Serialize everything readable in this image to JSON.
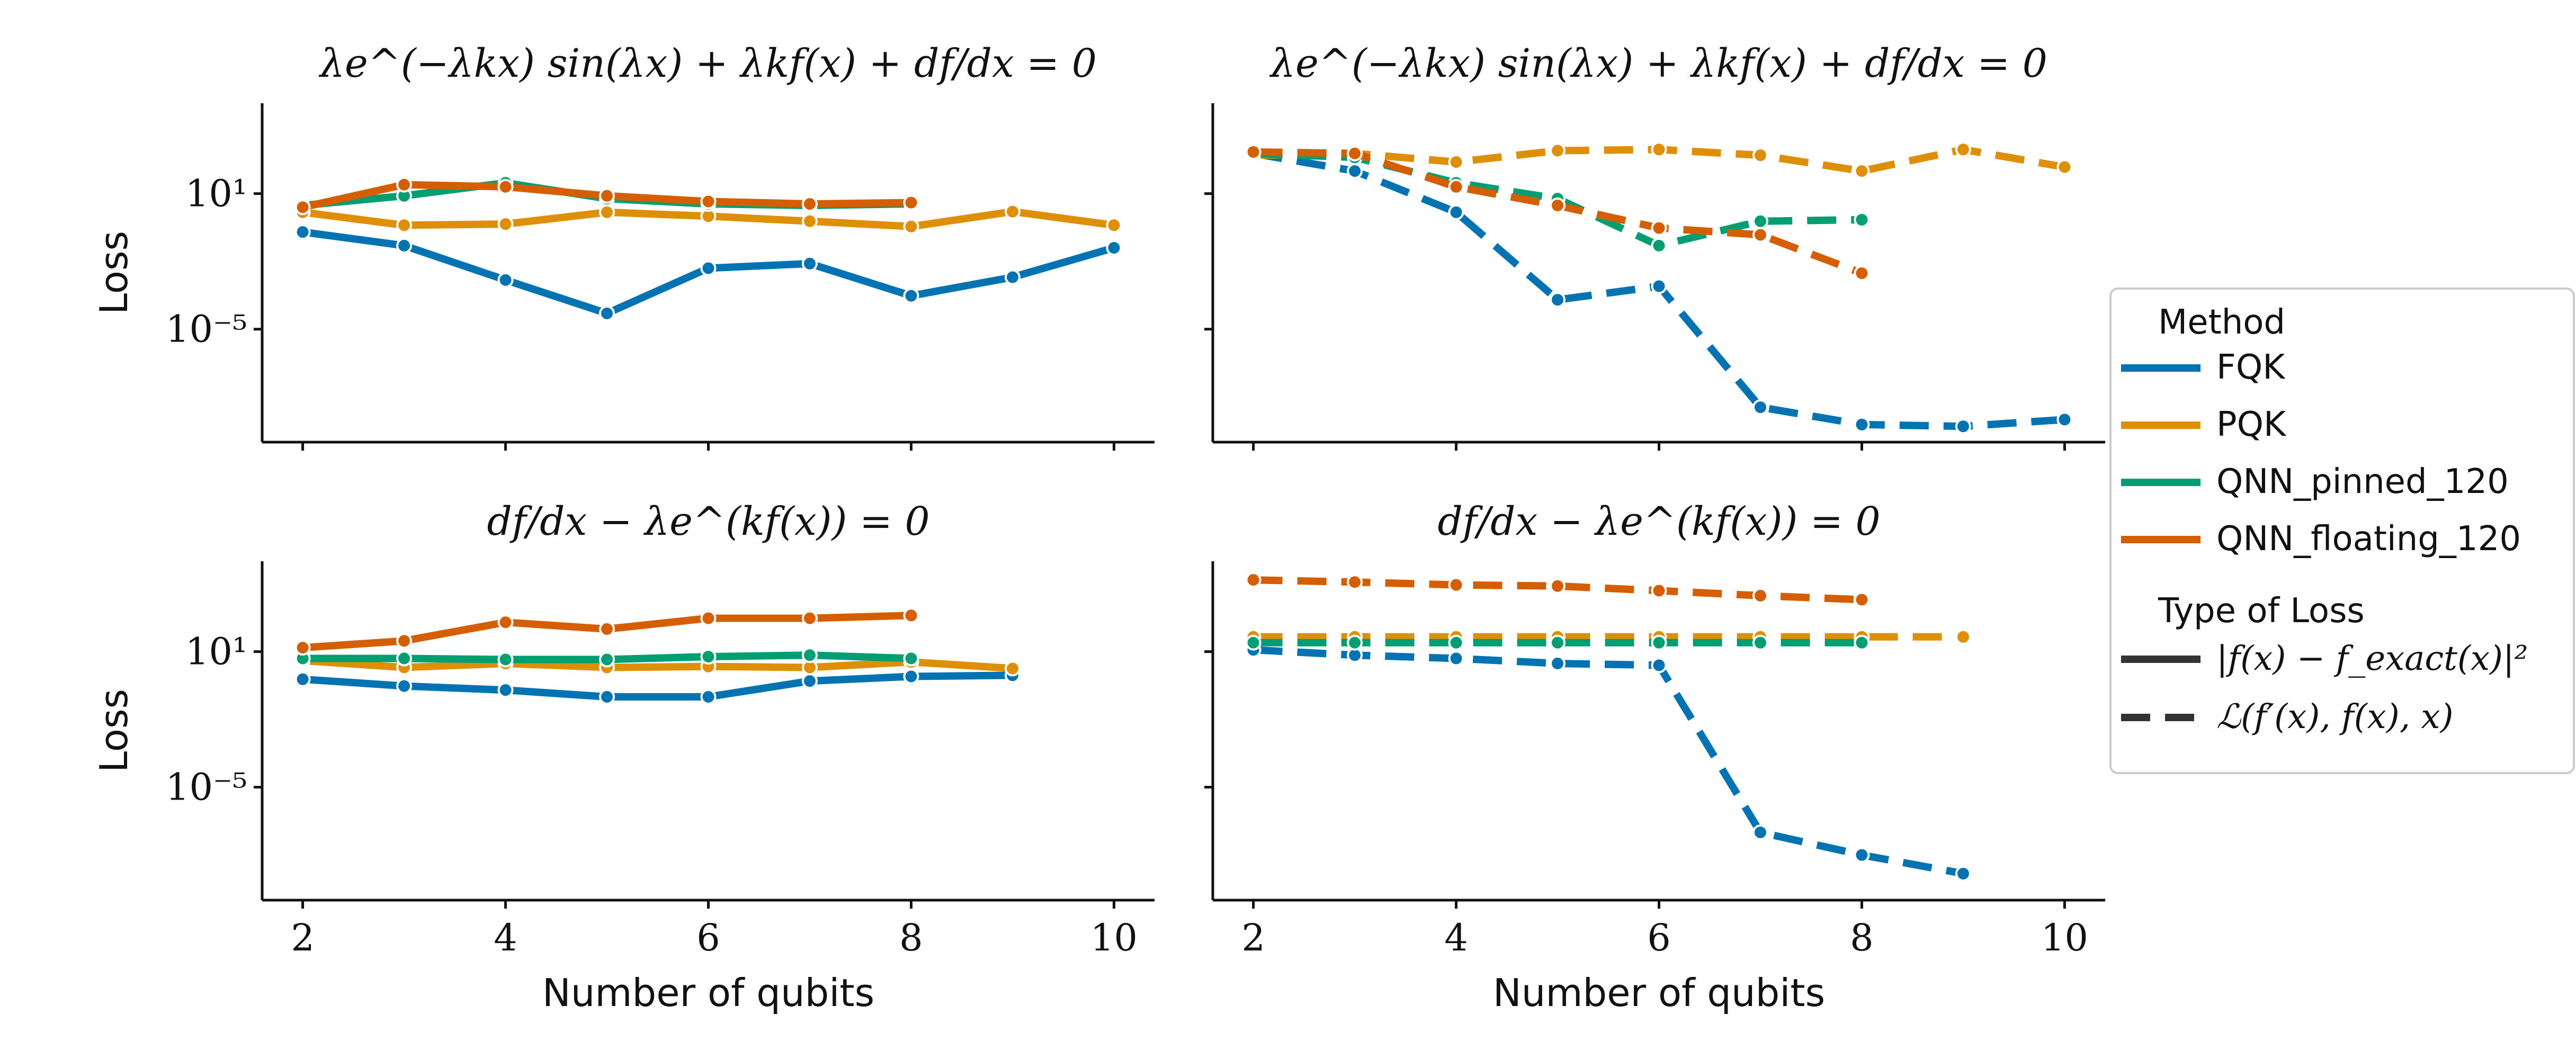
{
  "colors": {
    "FQK": "#0173b2",
    "PQK": "#de8f05",
    "QNN_pinned_120": "#029e73",
    "QNN_floating_120": "#d55e00",
    "axis": "#111111"
  },
  "legend": {
    "method_title": "Method",
    "methods": [
      "FQK",
      "PQK",
      "QNN_pinned_120",
      "QNN_floating_120"
    ],
    "type_title": "Type of Loss",
    "types": [
      {
        "label": "|f(x) − f_exact(x)|²",
        "style": "solid"
      },
      {
        "label": "ℒ(f′(x), f(x), x)",
        "style": "dashed"
      }
    ]
  },
  "chart_data": [
    {
      "type": "line",
      "title": "λe^(−λkx) sin(λx) + λkf(x) + df/dx = 0",
      "xlabel": "",
      "ylabel": "Loss",
      "yscale": "log",
      "xlim": [
        1.6,
        10.4
      ],
      "ylim": [
        1e-10,
        100000.0
      ],
      "yticks": [
        {
          "value": 10,
          "label": "10¹"
        },
        {
          "value": 1e-05,
          "label": "10⁻⁵"
        }
      ],
      "xticks": [],
      "style": "solid",
      "series": [
        {
          "name": "FQK",
          "x": [
            2,
            3,
            4,
            5,
            6,
            7,
            8,
            9,
            10
          ],
          "y": [
            0.2,
            0.05,
            0.0015,
            5e-05,
            0.005,
            0.008,
            0.0003,
            0.002,
            0.04
          ]
        },
        {
          "name": "PQK",
          "x": [
            2,
            3,
            4,
            5,
            6,
            7,
            8,
            9,
            10
          ],
          "y": [
            1.5,
            0.4,
            0.45,
            1.5,
            1.0,
            0.6,
            0.35,
            1.6,
            0.4
          ]
        },
        {
          "name": "QNN_pinned_120",
          "x": [
            2,
            3,
            4,
            5,
            6,
            7,
            8
          ],
          "y": [
            3,
            8,
            30,
            6,
            3.5,
            3,
            3.5
          ]
        },
        {
          "name": "QNN_floating_120",
          "x": [
            2,
            3,
            4,
            5,
            6,
            7,
            8
          ],
          "y": [
            2.5,
            25,
            20,
            8,
            4.5,
            3.5,
            4
          ]
        }
      ]
    },
    {
      "type": "line",
      "title": "λe^(−λkx) sin(λx) + λkf(x) + df/dx = 0",
      "xlabel": "",
      "ylabel": "",
      "yscale": "log",
      "xlim": [
        1.6,
        10.4
      ],
      "ylim": [
        1e-10,
        100000.0
      ],
      "yticks": [
        {
          "value": 10,
          "label": ""
        },
        {
          "value": 1e-05,
          "label": ""
        }
      ],
      "xticks": [],
      "style": "dashed",
      "series": [
        {
          "name": "FQK",
          "x": [
            2,
            3,
            4,
            5,
            6,
            7,
            8,
            9,
            10
          ],
          "y": [
            600,
            100,
            1.5,
            0.0002,
            0.0008,
            3.5e-09,
            6e-10,
            5e-10,
            1e-09
          ]
        },
        {
          "name": "PQK",
          "x": [
            2,
            3,
            4,
            5,
            6,
            7,
            8,
            9,
            10
          ],
          "y": [
            500,
            600,
            250,
            800,
            900,
            500,
            100,
            900,
            150
          ]
        },
        {
          "name": "QNN_pinned_120",
          "x": [
            2,
            3,
            4,
            5,
            6,
            7,
            8
          ],
          "y": [
            600,
            400,
            30,
            6,
            0.05,
            0.6,
            0.7
          ]
        },
        {
          "name": "QNN_floating_120",
          "x": [
            2,
            3,
            4,
            5,
            6,
            7,
            8
          ],
          "y": [
            700,
            600,
            20,
            3,
            0.3,
            0.15,
            0.003
          ]
        }
      ]
    },
    {
      "type": "line",
      "title": "df/dx − λe^(kf(x)) = 0",
      "xlabel": "Number of qubits",
      "ylabel": "Loss",
      "yscale": "log",
      "xlim": [
        1.6,
        10.4
      ],
      "ylim": [
        1e-10,
        100000.0
      ],
      "yticks": [
        {
          "value": 10,
          "label": "10¹"
        },
        {
          "value": 1e-05,
          "label": "10⁻⁵"
        }
      ],
      "xticks": [
        2,
        4,
        6,
        8,
        10
      ],
      "style": "solid",
      "series": [
        {
          "name": "FQK",
          "x": [
            2,
            3,
            4,
            5,
            6,
            7,
            8,
            9
          ],
          "y": [
            0.6,
            0.3,
            0.2,
            0.1,
            0.1,
            0.5,
            0.8,
            0.9
          ]
        },
        {
          "name": "PQK",
          "x": [
            2,
            3,
            4,
            5,
            6,
            7,
            8,
            9
          ],
          "y": [
            4,
            2,
            3,
            2,
            2.2,
            2,
            3.5,
            1.8
          ]
        },
        {
          "name": "QNN_pinned_120",
          "x": [
            2,
            3,
            4,
            5,
            6,
            7,
            8
          ],
          "y": [
            5,
            5,
            4.5,
            4.5,
            6,
            7,
            5
          ]
        },
        {
          "name": "QNN_floating_120",
          "x": [
            2,
            3,
            4,
            5,
            6,
            7,
            8
          ],
          "y": [
            15,
            30,
            200,
            100,
            300,
            300,
            400
          ]
        }
      ]
    },
    {
      "type": "line",
      "title": "df/dx − λe^(kf(x)) = 0",
      "xlabel": "Number of qubits",
      "ylabel": "",
      "yscale": "log",
      "xlim": [
        1.6,
        10.4
      ],
      "ylim": [
        1e-10,
        100000.0
      ],
      "yticks": [
        {
          "value": 10,
          "label": ""
        },
        {
          "value": 1e-05,
          "label": ""
        }
      ],
      "xticks": [
        2,
        4,
        6,
        8,
        10
      ],
      "style": "dashed",
      "series": [
        {
          "name": "FQK",
          "x": [
            2,
            3,
            4,
            5,
            6,
            7,
            8,
            9
          ],
          "y": [
            12,
            7,
            5,
            3,
            2.5,
            1e-07,
            1e-08,
            1.5e-09
          ]
        },
        {
          "name": "PQK",
          "x": [
            2,
            3,
            4,
            5,
            6,
            7,
            8,
            9
          ],
          "y": [
            45,
            45,
            45,
            45,
            45,
            45,
            45,
            45
          ]
        },
        {
          "name": "QNN_pinned_120",
          "x": [
            2,
            3,
            4,
            5,
            6,
            7,
            8
          ],
          "y": [
            25,
            25,
            25,
            25,
            25,
            25,
            25
          ]
        },
        {
          "name": "QNN_floating_120",
          "x": [
            2,
            3,
            4,
            5,
            6,
            7,
            8
          ],
          "y": [
            15000,
            12000,
            9000,
            8000,
            5000,
            3000,
            2000
          ]
        }
      ]
    }
  ]
}
